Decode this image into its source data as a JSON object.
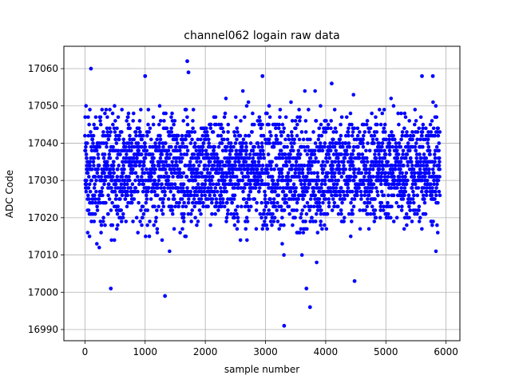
{
  "chart_data": {
    "type": "scatter",
    "title": "channel062 logain raw data",
    "xlabel": "sample number",
    "ylabel": "ADC Code",
    "xlim": [
      -350,
      6230
    ],
    "ylim": [
      16987,
      17066
    ],
    "x_ticks": [
      0,
      1000,
      2000,
      3000,
      4000,
      5000,
      6000
    ],
    "y_ticks": [
      16990,
      17000,
      17010,
      17020,
      17030,
      17040,
      17050,
      17060
    ],
    "grid": true,
    "marker_color": "#0000ff",
    "n_samples": 5900,
    "series": [
      {
        "baseline": 17033,
        "typical_spread": [
          17010,
          17050
        ],
        "notable_points": [
          {
            "x": 100,
            "y": 17060
          },
          {
            "x": 1000,
            "y": 17058
          },
          {
            "x": 1700,
            "y": 17062
          },
          {
            "x": 1720,
            "y": 17059
          },
          {
            "x": 2950,
            "y": 17058
          },
          {
            "x": 4100,
            "y": 17056
          },
          {
            "x": 5600,
            "y": 17058
          },
          {
            "x": 5780,
            "y": 17058
          },
          {
            "x": 430,
            "y": 17001
          },
          {
            "x": 1330,
            "y": 16999
          },
          {
            "x": 3310,
            "y": 16991
          },
          {
            "x": 3740,
            "y": 16996
          },
          {
            "x": 3680,
            "y": 17001
          },
          {
            "x": 4480,
            "y": 17003
          }
        ]
      }
    ]
  }
}
